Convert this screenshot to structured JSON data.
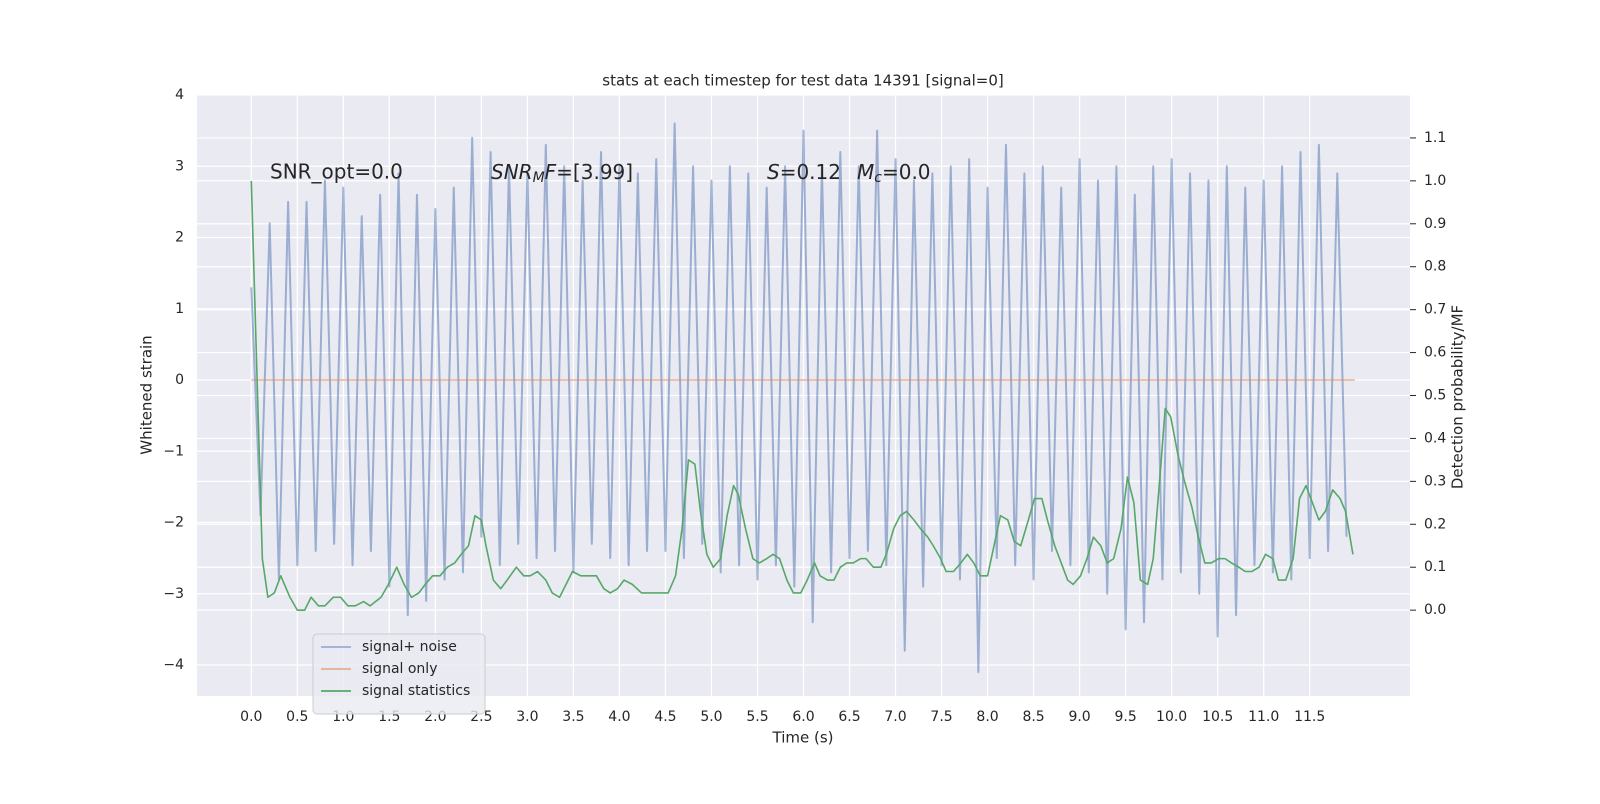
{
  "chart_data": {
    "type": "line",
    "title": "stats at each timestep for test data 14391 [signal=0]",
    "x_label": "Time (s)",
    "y_label": "Whitened strain",
    "y2_label": "Detection probability/MF",
    "annotations": [
      "SNR_opt=0.0",
      [
        "SNR",
        "M",
        "F",
        "=[3.99]"
      ],
      [
        "S",
        "=0.12",
        "M",
        "c",
        "=0.0"
      ]
    ],
    "xlim": [
      -0.59,
      12.59
    ],
    "ylim": [
      -4.435,
      4
    ],
    "y2lim": [
      -0.2,
      1.2
    ],
    "xticks": [
      {
        "value": 0,
        "label": "0.0"
      },
      0.5,
      {
        "value": 1,
        "label": "1.0"
      },
      1.5,
      {
        "value": 2,
        "label": "2.0"
      },
      2.5,
      {
        "value": 3,
        "label": "3.0"
      },
      3.5,
      {
        "value": 4,
        "label": "4.0"
      },
      4.5,
      {
        "value": 5,
        "label": "5.0"
      },
      5.5,
      {
        "value": 6,
        "label": "6.0"
      },
      6.5,
      {
        "value": 7,
        "label": "7.0"
      },
      7.5,
      {
        "value": 8,
        "label": "8.0"
      },
      8.5,
      {
        "value": 9,
        "label": "9.0"
      },
      9.5,
      {
        "value": 10,
        "label": "10.0"
      },
      10.5,
      {
        "value": 11,
        "label": "11.0"
      },
      11.5
    ],
    "yticks": [
      {
        "value": -4,
        "label": "−4"
      },
      {
        "value": -3,
        "label": "−3"
      },
      {
        "value": -2,
        "label": "−2"
      },
      {
        "value": -1,
        "label": "−1"
      },
      0,
      1,
      2,
      3,
      4
    ],
    "y2ticks": [
      {
        "value": 0,
        "label": "0.0"
      },
      0.1,
      0.2,
      0.3,
      0.4,
      0.5,
      0.6,
      0.7,
      0.8,
      0.9,
      {
        "value": 1,
        "label": "1.0"
      },
      1.1
    ],
    "grid": true,
    "legend": "lower left",
    "series": [
      {
        "name": "signal+ noise",
        "color": "#4c72b0",
        "opacity": 0.5,
        "x": [
          0.0,
          0.1,
          0.2,
          0.3,
          0.4,
          0.5,
          0.6,
          0.7,
          0.8,
          0.9,
          1.0,
          1.1,
          1.2,
          1.3,
          1.4,
          1.5,
          1.6,
          1.7,
          1.8,
          1.9,
          2.0,
          2.1,
          2.2,
          2.3,
          2.4,
          2.5,
          2.6,
          2.7,
          2.8,
          2.9,
          3.0,
          3.1,
          3.2,
          3.3,
          3.4,
          3.5,
          3.6,
          3.7,
          3.8,
          3.9,
          4.0,
          4.1,
          4.2,
          4.3,
          4.4,
          4.5,
          4.6,
          4.7,
          4.8,
          4.9,
          5.0,
          5.1,
          5.2,
          5.3,
          5.4,
          5.5,
          5.6,
          5.7,
          5.8,
          5.9,
          6.0,
          6.1,
          6.2,
          6.3,
          6.4,
          6.5,
          6.6,
          6.7,
          6.8,
          6.9,
          7.0,
          7.1,
          7.2,
          7.3,
          7.4,
          7.5,
          7.6,
          7.7,
          7.8,
          7.9,
          8.0,
          8.1,
          8.2,
          8.3,
          8.4,
          8.5,
          8.6,
          8.7,
          8.8,
          8.9,
          9.0,
          9.1,
          9.2,
          9.3,
          9.4,
          9.5,
          9.6,
          9.7,
          9.8,
          9.9,
          10.0,
          10.1,
          10.2,
          10.3,
          10.4,
          10.5,
          10.6,
          10.7,
          10.8,
          10.9,
          11.0,
          11.1,
          11.2,
          11.3,
          11.4,
          11.5,
          11.6,
          11.7,
          11.8,
          11.9
        ],
        "values": [
          1.3,
          -1.9,
          2.2,
          -2.8,
          2.5,
          -2.6,
          2.5,
          -2.4,
          2.8,
          -2.3,
          2.7,
          -2.6,
          2.3,
          -2.4,
          2.6,
          -2.9,
          2.9,
          -3.3,
          2.6,
          -3.1,
          2.4,
          -2.8,
          2.7,
          -2.7,
          3.4,
          -2.2,
          3.2,
          -2.6,
          3.0,
          -2.3,
          2.9,
          -2.5,
          3.3,
          -2.4,
          3.0,
          -2.7,
          2.8,
          -2.3,
          3.2,
          -2.5,
          3.0,
          -2.6,
          2.9,
          -2.4,
          3.1,
          -2.4,
          3.6,
          -2.5,
          3.0,
          -2.3,
          2.8,
          -2.7,
          3.0,
          -2.6,
          2.9,
          -2.8,
          2.7,
          -2.6,
          3.0,
          -2.9,
          3.5,
          -3.4,
          3.0,
          -2.7,
          3.2,
          -2.5,
          3.0,
          -2.4,
          3.5,
          -2.6,
          3.1,
          -3.8,
          2.8,
          -2.9,
          2.9,
          -2.6,
          3.0,
          -2.8,
          3.1,
          -4.1,
          2.7,
          -2.5,
          3.3,
          -2.6,
          2.9,
          -2.8,
          3.0,
          -2.4,
          2.7,
          -2.6,
          3.1,
          -2.7,
          2.8,
          -3.0,
          3.0,
          -3.5,
          2.6,
          -3.4,
          3.0,
          -2.8,
          3.1,
          -2.7,
          2.9,
          -3.0,
          2.8,
          -3.6,
          3.0,
          -3.3,
          2.7,
          -2.6,
          2.8,
          -2.7,
          3.0,
          -2.8,
          3.2,
          -2.5,
          3.3,
          -2.4,
          2.9,
          -2.2
        ]
      },
      {
        "name": "signal only",
        "color": "#dd8452",
        "opacity": 0.6,
        "x": [
          0.0,
          11.99
        ],
        "values": [
          0,
          0
        ]
      },
      {
        "name": "signal statistics",
        "color": "#55a868",
        "opacity": 1,
        "axis": "y2",
        "x": [
          0,
          0.12,
          0.18,
          0.25,
          0.32,
          0.42,
          0.5,
          0.58,
          0.65,
          0.73,
          0.8,
          0.89,
          0.97,
          1.05,
          1.13,
          1.22,
          1.29,
          1.41,
          1.49,
          1.58,
          1.66,
          1.74,
          1.82,
          1.89,
          1.97,
          2.05,
          2.13,
          2.21,
          2.28,
          2.36,
          2.43,
          2.5,
          2.55,
          2.63,
          2.71,
          2.78,
          2.88,
          2.96,
          3.03,
          3.11,
          3.2,
          3.27,
          3.35,
          3.42,
          3.49,
          3.58,
          3.66,
          3.75,
          3.83,
          3.9,
          3.98,
          4.05,
          4.14,
          4.24,
          4.32,
          4.39,
          4.47,
          4.53,
          4.61,
          4.68,
          4.75,
          4.82,
          4.88,
          4.95,
          5.02,
          5.1,
          5.17,
          5.24,
          5.29,
          5.37,
          5.45,
          5.52,
          5.6,
          5.67,
          5.74,
          5.82,
          5.89,
          5.97,
          6.04,
          6.12,
          6.18,
          6.26,
          6.33,
          6.4,
          6.47,
          6.54,
          6.62,
          6.68,
          6.76,
          6.84,
          6.9,
          6.98,
          7.05,
          7.12,
          7.2,
          7.27,
          7.35,
          7.41,
          7.49,
          7.55,
          7.63,
          7.71,
          7.78,
          7.85,
          7.92,
          8.0,
          8.07,
          8.14,
          8.22,
          8.29,
          8.36,
          8.43,
          8.51,
          8.59,
          8.65,
          8.73,
          8.8,
          8.87,
          8.93,
          9.01,
          9.08,
          9.15,
          9.23,
          9.3,
          9.37,
          9.45,
          9.52,
          9.59,
          9.66,
          9.74,
          9.8,
          9.88,
          9.93,
          9.99,
          10.07,
          10.14,
          10.22,
          10.29,
          10.36,
          10.43,
          10.51,
          10.58,
          10.65,
          10.73,
          10.8,
          10.87,
          10.95,
          11.02,
          11.1,
          11.16,
          11.24,
          11.32,
          11.39,
          11.46,
          11.53,
          11.6,
          11.67,
          11.75,
          11.83,
          11.89,
          11.97
        ],
        "values": [
          1.0,
          0.12,
          0.03,
          0.04,
          0.08,
          0.03,
          0.0,
          0.0,
          0.03,
          0.01,
          0.01,
          0.03,
          0.03,
          0.01,
          0.01,
          0.02,
          0.01,
          0.03,
          0.06,
          0.1,
          0.06,
          0.03,
          0.04,
          0.06,
          0.08,
          0.08,
          0.1,
          0.11,
          0.13,
          0.15,
          0.22,
          0.21,
          0.15,
          0.07,
          0.05,
          0.07,
          0.1,
          0.08,
          0.08,
          0.09,
          0.07,
          0.04,
          0.03,
          0.06,
          0.09,
          0.08,
          0.08,
          0.08,
          0.05,
          0.04,
          0.05,
          0.07,
          0.06,
          0.04,
          0.04,
          0.04,
          0.04,
          0.04,
          0.08,
          0.19,
          0.35,
          0.34,
          0.23,
          0.13,
          0.1,
          0.12,
          0.22,
          0.29,
          0.27,
          0.19,
          0.12,
          0.11,
          0.12,
          0.13,
          0.12,
          0.07,
          0.04,
          0.04,
          0.07,
          0.11,
          0.08,
          0.07,
          0.07,
          0.1,
          0.11,
          0.11,
          0.12,
          0.12,
          0.1,
          0.1,
          0.13,
          0.19,
          0.22,
          0.23,
          0.21,
          0.19,
          0.17,
          0.15,
          0.12,
          0.09,
          0.09,
          0.11,
          0.13,
          0.11,
          0.08,
          0.08,
          0.15,
          0.22,
          0.21,
          0.16,
          0.15,
          0.2,
          0.26,
          0.26,
          0.21,
          0.15,
          0.11,
          0.07,
          0.06,
          0.08,
          0.12,
          0.17,
          0.15,
          0.11,
          0.12,
          0.19,
          0.31,
          0.25,
          0.07,
          0.06,
          0.12,
          0.33,
          0.47,
          0.45,
          0.36,
          0.3,
          0.24,
          0.17,
          0.11,
          0.11,
          0.12,
          0.12,
          0.11,
          0.1,
          0.09,
          0.09,
          0.1,
          0.13,
          0.12,
          0.07,
          0.07,
          0.12,
          0.26,
          0.29,
          0.25,
          0.21,
          0.23,
          0.28,
          0.26,
          0.23,
          0.13
        ]
      }
    ]
  }
}
